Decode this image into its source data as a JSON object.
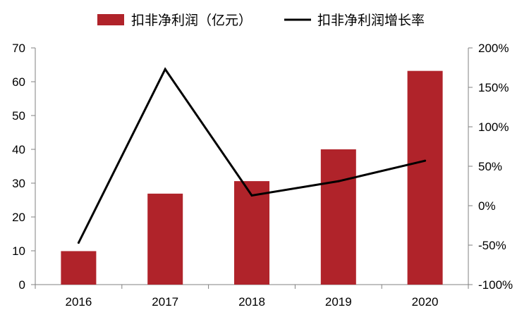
{
  "chart_data": {
    "type": "bar+line",
    "categories": [
      "2016",
      "2017",
      "2018",
      "2019",
      "2020"
    ],
    "series": [
      {
        "name": "扣非净利润（亿元）",
        "type": "bar",
        "axis": "left",
        "color": "#B0232A",
        "values": [
          9.9,
          26.9,
          30.6,
          40.0,
          63.2
        ]
      },
      {
        "name": "扣非净利润增长率",
        "type": "line",
        "axis": "right",
        "color": "#000000",
        "values": [
          -47,
          173,
          13,
          31,
          57
        ]
      }
    ],
    "y_left": {
      "ylim": [
        0,
        70
      ],
      "ticks": [
        0,
        10,
        20,
        30,
        40,
        50,
        60,
        70
      ],
      "tick_labels": [
        "0",
        "10",
        "20",
        "30",
        "40",
        "50",
        "60",
        "70"
      ]
    },
    "y_right": {
      "ylim": [
        -100,
        200
      ],
      "ticks": [
        -100,
        -50,
        0,
        50,
        100,
        150,
        200
      ],
      "tick_labels": [
        "-100%",
        "-50%",
        "0%",
        "50%",
        "100%",
        "150%",
        "200%"
      ]
    },
    "legend": {
      "position": "top",
      "bar_label": "扣非净利润（亿元）",
      "line_label": "扣非净利润增长率"
    },
    "grid": false
  }
}
